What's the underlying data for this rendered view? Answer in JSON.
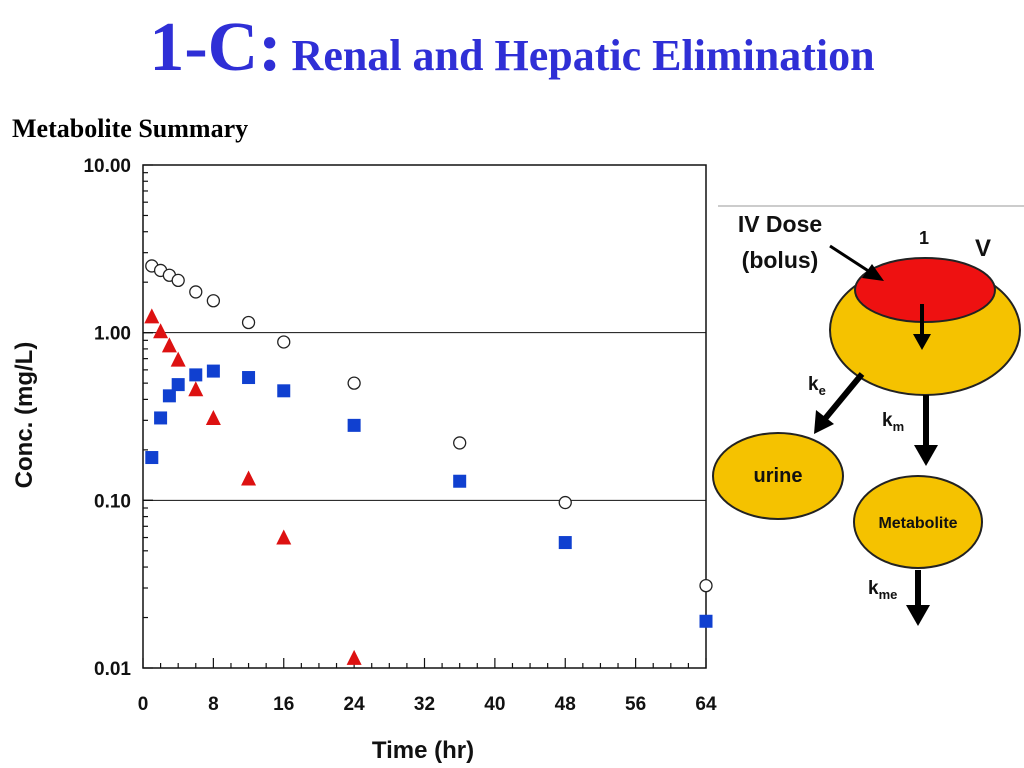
{
  "header": {
    "number": "1-C:",
    "title": "Renal and Hepatic Elimination",
    "subtitle": "Metabolite Summary"
  },
  "colors": {
    "title": "#2f2fd6",
    "triangle": "#dd1111",
    "square": "#1040d0",
    "circle_stroke": "#222222",
    "compartment_fill": "#f5c200",
    "dose_fill": "#ee1111"
  },
  "chart_data": {
    "type": "scatter",
    "title": "",
    "xlabel": "Time (hr)",
    "ylabel": "Conc. (mg/L)",
    "xlim": [
      0,
      64
    ],
    "ylim": [
      0.01,
      10
    ],
    "y_scale": "log",
    "x_ticks": [
      "0",
      "8",
      "16",
      "24",
      "32",
      "40",
      "48",
      "56",
      "64"
    ],
    "y_ticks": [
      "10.00",
      "1.00",
      "0.10",
      "0.01"
    ],
    "gridlines_y": [
      1,
      0.1
    ],
    "series": [
      {
        "marker": "open-circle",
        "x": [
          1,
          2,
          3,
          4,
          6,
          8,
          12,
          16,
          24,
          36,
          48,
          64
        ],
        "y": [
          2.5,
          2.35,
          2.2,
          2.05,
          1.75,
          1.55,
          1.15,
          0.88,
          0.5,
          0.22,
          0.097,
          0.031
        ]
      },
      {
        "marker": "filled-triangle",
        "x": [
          1,
          2,
          3,
          4,
          6,
          8,
          12,
          16,
          24
        ],
        "y": [
          1.25,
          1.02,
          0.84,
          0.69,
          0.46,
          0.31,
          0.135,
          0.06,
          0.0115
        ]
      },
      {
        "marker": "filled-square",
        "x": [
          1,
          2,
          3,
          4,
          6,
          8,
          12,
          16,
          24,
          36,
          48,
          64
        ],
        "y": [
          0.18,
          0.31,
          0.42,
          0.49,
          0.56,
          0.59,
          0.54,
          0.45,
          0.28,
          0.13,
          0.056,
          0.019
        ]
      }
    ]
  },
  "diagram": {
    "dose_label_line1": "IV Dose",
    "dose_label_line2": "(bolus)",
    "compartment_number": "1",
    "volume_label": "V",
    "ke_label": "k",
    "ke_sub": "e",
    "km_label": "k",
    "km_sub": "m",
    "kme_label": "k",
    "kme_sub": "me",
    "urine_label": "urine",
    "metabolite_label": "Metabolite"
  }
}
